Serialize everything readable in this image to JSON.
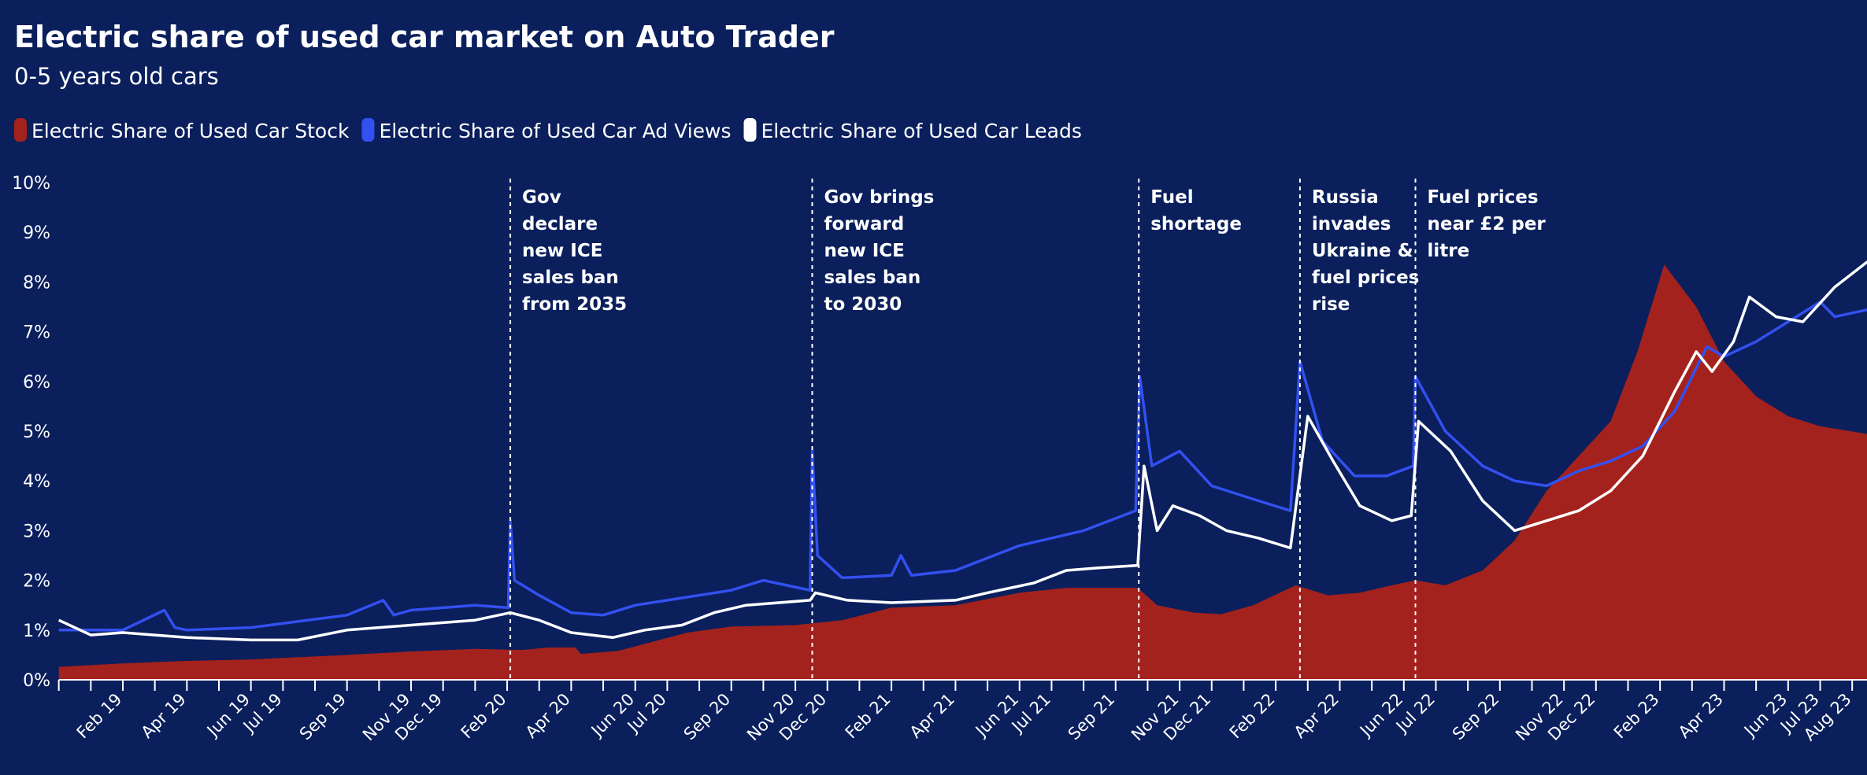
{
  "chart_data": {
    "type": "area+line",
    "title": "Electric share of used car market on Auto Trader",
    "subtitle": "0-5 years old cars",
    "xlabel": "",
    "ylabel": "",
    "ylim": [
      0,
      10
    ],
    "yticks": [
      "0%",
      "1%",
      "2%",
      "3%",
      "4%",
      "5%",
      "6%",
      "7%",
      "8%",
      "9%",
      "10%"
    ],
    "xlim": [
      "2018-12-01",
      "2023-08-28"
    ],
    "xticks": [
      {
        "label": "Feb 19",
        "date": "2019-02-01"
      },
      {
        "label": "Apr 19",
        "date": "2019-04-01"
      },
      {
        "label": "Jun 19",
        "date": "2019-06-01"
      },
      {
        "label": "Jul 19",
        "date": "2019-07-01"
      },
      {
        "label": "Sep 19",
        "date": "2019-09-01"
      },
      {
        "label": "Nov 19",
        "date": "2019-11-01"
      },
      {
        "label": "Dec 19",
        "date": "2019-12-01"
      },
      {
        "label": "Feb 20",
        "date": "2020-02-01"
      },
      {
        "label": "Apr 20",
        "date": "2020-04-01"
      },
      {
        "label": "Jun 20",
        "date": "2020-06-01"
      },
      {
        "label": "Jul 20",
        "date": "2020-07-01"
      },
      {
        "label": "Sep 20",
        "date": "2020-09-01"
      },
      {
        "label": "Nov 20",
        "date": "2020-11-01"
      },
      {
        "label": "Dec 20",
        "date": "2020-12-01"
      },
      {
        "label": "Feb 21",
        "date": "2021-02-01"
      },
      {
        "label": "Apr 21",
        "date": "2021-04-01"
      },
      {
        "label": "Jun 21",
        "date": "2021-06-01"
      },
      {
        "label": "Jul 21",
        "date": "2021-07-01"
      },
      {
        "label": "Sep 21",
        "date": "2021-09-01"
      },
      {
        "label": "Nov 21",
        "date": "2021-11-01"
      },
      {
        "label": "Dec 21",
        "date": "2021-12-01"
      },
      {
        "label": "Feb 22",
        "date": "2022-02-01"
      },
      {
        "label": "Apr 22",
        "date": "2022-04-01"
      },
      {
        "label": "Jun 22",
        "date": "2022-06-01"
      },
      {
        "label": "Jul 22",
        "date": "2022-07-01"
      },
      {
        "label": "Sep 22",
        "date": "2022-09-01"
      },
      {
        "label": "Nov 22",
        "date": "2022-11-01"
      },
      {
        "label": "Dec 22",
        "date": "2022-12-01"
      },
      {
        "label": "Feb 23",
        "date": "2023-02-01"
      },
      {
        "label": "Apr 23",
        "date": "2023-04-01"
      },
      {
        "label": "Jun 23",
        "date": "2023-06-01"
      },
      {
        "label": "Jul 23",
        "date": "2023-07-01"
      },
      {
        "label": "Aug 23",
        "date": "2023-08-01"
      }
    ],
    "grid": false,
    "legend_placement": "top-left",
    "series": [
      {
        "name": "Electric Share of Used Car Stock",
        "type": "area",
        "color": "#a4221d",
        "points": [
          [
            "2018-12-01",
            0.26
          ],
          [
            "2019-02-01",
            0.33
          ],
          [
            "2019-04-01",
            0.38
          ],
          [
            "2019-06-01",
            0.41
          ],
          [
            "2019-09-01",
            0.5
          ],
          [
            "2019-11-01",
            0.57
          ],
          [
            "2020-01-01",
            0.62
          ],
          [
            "2020-02-15",
            0.6
          ],
          [
            "2020-03-10",
            0.65
          ],
          [
            "2020-04-05",
            0.65
          ],
          [
            "2020-04-10",
            0.52
          ],
          [
            "2020-05-15",
            0.58
          ],
          [
            "2020-06-15",
            0.75
          ],
          [
            "2020-07-20",
            0.95
          ],
          [
            "2020-09-01",
            1.07
          ],
          [
            "2020-11-01",
            1.1
          ],
          [
            "2020-12-15",
            1.2
          ],
          [
            "2021-02-01",
            1.45
          ],
          [
            "2021-04-01",
            1.5
          ],
          [
            "2021-06-01",
            1.75
          ],
          [
            "2021-07-15",
            1.85
          ],
          [
            "2021-09-22",
            1.85
          ],
          [
            "2021-10-10",
            1.5
          ],
          [
            "2021-11-15",
            1.35
          ],
          [
            "2021-12-10",
            1.32
          ],
          [
            "2022-01-10",
            1.5
          ],
          [
            "2022-02-20",
            1.9
          ],
          [
            "2022-03-20",
            1.7
          ],
          [
            "2022-04-20",
            1.75
          ],
          [
            "2022-05-20",
            1.9
          ],
          [
            "2022-06-12",
            2.0
          ],
          [
            "2022-07-10",
            1.9
          ],
          [
            "2022-08-15",
            2.2
          ],
          [
            "2022-09-15",
            2.8
          ],
          [
            "2022-10-15",
            3.8
          ],
          [
            "2022-11-15",
            4.5
          ],
          [
            "2022-12-15",
            5.2
          ],
          [
            "2023-01-10",
            6.6
          ],
          [
            "2023-02-05",
            8.35
          ],
          [
            "2023-03-05",
            7.5
          ],
          [
            "2023-04-01",
            6.4
          ],
          [
            "2023-05-01",
            5.7
          ],
          [
            "2023-06-01",
            5.3
          ],
          [
            "2023-07-01",
            5.1
          ],
          [
            "2023-08-28",
            4.9
          ]
        ]
      },
      {
        "name": "Electric Share of Used Car Ad Views",
        "type": "line",
        "color": "#3350f0",
        "points": [
          [
            "2018-12-01",
            1.0
          ],
          [
            "2019-02-01",
            1.0
          ],
          [
            "2019-03-10",
            1.4
          ],
          [
            "2019-03-20",
            1.05
          ],
          [
            "2019-04-01",
            1.0
          ],
          [
            "2019-06-01",
            1.05
          ],
          [
            "2019-09-01",
            1.3
          ],
          [
            "2019-10-05",
            1.6
          ],
          [
            "2019-10-15",
            1.3
          ],
          [
            "2019-11-01",
            1.4
          ],
          [
            "2020-01-01",
            1.5
          ],
          [
            "2020-02-02",
            1.45
          ],
          [
            "2020-02-04",
            3.2
          ],
          [
            "2020-02-08",
            2.0
          ],
          [
            "2020-03-01",
            1.7
          ],
          [
            "2020-04-01",
            1.35
          ],
          [
            "2020-05-01",
            1.3
          ],
          [
            "2020-06-01",
            1.5
          ],
          [
            "2020-07-01",
            1.6
          ],
          [
            "2020-09-01",
            1.8
          ],
          [
            "2020-10-01",
            2.0
          ],
          [
            "2020-11-15",
            1.8
          ],
          [
            "2020-11-17",
            4.6
          ],
          [
            "2020-11-22",
            2.5
          ],
          [
            "2020-12-15",
            2.05
          ],
          [
            "2021-02-01",
            2.1
          ],
          [
            "2021-02-10",
            2.5
          ],
          [
            "2021-02-20",
            2.1
          ],
          [
            "2021-04-01",
            2.2
          ],
          [
            "2021-06-01",
            2.7
          ],
          [
            "2021-08-01",
            3.0
          ],
          [
            "2021-09-20",
            3.4
          ],
          [
            "2021-09-24",
            6.1
          ],
          [
            "2021-10-05",
            4.3
          ],
          [
            "2021-11-01",
            4.6
          ],
          [
            "2021-12-01",
            3.9
          ],
          [
            "2022-01-15",
            3.6
          ],
          [
            "2022-02-15",
            3.4
          ],
          [
            "2022-02-24",
            6.4
          ],
          [
            "2022-03-15",
            4.8
          ],
          [
            "2022-04-15",
            4.1
          ],
          [
            "2022-05-15",
            4.1
          ],
          [
            "2022-06-10",
            4.3
          ],
          [
            "2022-06-12",
            6.1
          ],
          [
            "2022-07-10",
            5.0
          ],
          [
            "2022-08-15",
            4.3
          ],
          [
            "2022-09-15",
            4.0
          ],
          [
            "2022-10-15",
            3.9
          ],
          [
            "2022-11-15",
            4.2
          ],
          [
            "2022-12-15",
            4.4
          ],
          [
            "2023-01-15",
            4.7
          ],
          [
            "2023-02-15",
            5.4
          ],
          [
            "2023-03-15",
            6.7
          ],
          [
            "2023-04-01",
            6.5
          ],
          [
            "2023-05-01",
            6.8
          ],
          [
            "2023-06-01",
            7.2
          ],
          [
            "2023-07-01",
            7.6
          ],
          [
            "2023-07-15",
            7.3
          ],
          [
            "2023-08-28",
            7.5
          ]
        ]
      },
      {
        "name": "Electric Share of Used Car Leads",
        "type": "line",
        "color": "#ffffff",
        "points": [
          [
            "2018-12-01",
            1.2
          ],
          [
            "2019-01-01",
            0.9
          ],
          [
            "2019-02-01",
            0.95
          ],
          [
            "2019-04-01",
            0.85
          ],
          [
            "2019-06-01",
            0.8
          ],
          [
            "2019-07-15",
            0.8
          ],
          [
            "2019-09-01",
            1.0
          ],
          [
            "2019-11-01",
            1.1
          ],
          [
            "2020-01-01",
            1.2
          ],
          [
            "2020-02-04",
            1.35
          ],
          [
            "2020-03-01",
            1.2
          ],
          [
            "2020-04-01",
            0.95
          ],
          [
            "2020-05-10",
            0.85
          ],
          [
            "2020-06-10",
            1.0
          ],
          [
            "2020-07-15",
            1.1
          ],
          [
            "2020-08-15",
            1.35
          ],
          [
            "2020-09-15",
            1.5
          ],
          [
            "2020-11-15",
            1.6
          ],
          [
            "2020-11-20",
            1.75
          ],
          [
            "2020-12-20",
            1.6
          ],
          [
            "2021-02-01",
            1.55
          ],
          [
            "2021-04-01",
            1.6
          ],
          [
            "2021-05-01",
            1.75
          ],
          [
            "2021-06-15",
            1.95
          ],
          [
            "2021-07-15",
            2.2
          ],
          [
            "2021-08-15",
            2.25
          ],
          [
            "2021-09-22",
            2.3
          ],
          [
            "2021-09-28",
            4.3
          ],
          [
            "2021-10-10",
            3.0
          ],
          [
            "2021-10-25",
            3.5
          ],
          [
            "2021-11-20",
            3.3
          ],
          [
            "2021-12-15",
            3.0
          ],
          [
            "2022-01-15",
            2.85
          ],
          [
            "2022-02-15",
            2.65
          ],
          [
            "2022-03-01",
            5.3
          ],
          [
            "2022-03-25",
            4.4
          ],
          [
            "2022-04-20",
            3.5
          ],
          [
            "2022-05-20",
            3.2
          ],
          [
            "2022-06-08",
            3.3
          ],
          [
            "2022-06-15",
            5.2
          ],
          [
            "2022-07-15",
            4.6
          ],
          [
            "2022-08-15",
            3.6
          ],
          [
            "2022-09-15",
            3.0
          ],
          [
            "2022-10-15",
            3.2
          ],
          [
            "2022-11-15",
            3.4
          ],
          [
            "2022-12-15",
            3.8
          ],
          [
            "2023-01-15",
            4.5
          ],
          [
            "2023-02-15",
            5.8
          ],
          [
            "2023-03-05",
            6.6
          ],
          [
            "2023-03-20",
            6.2
          ],
          [
            "2023-04-10",
            6.8
          ],
          [
            "2023-04-25",
            7.7
          ],
          [
            "2023-05-20",
            7.3
          ],
          [
            "2023-06-15",
            7.2
          ],
          [
            "2023-07-15",
            7.9
          ],
          [
            "2023-08-15",
            8.4
          ],
          [
            "2023-08-28",
            8.3
          ]
        ]
      }
    ],
    "annotations": [
      {
        "date": "2020-02-04",
        "lines": [
          "Gov",
          "declare",
          "new ICE",
          "sales ban",
          "from 2035"
        ]
      },
      {
        "date": "2020-11-17",
        "lines": [
          "Gov brings",
          "forward",
          "new ICE",
          "sales ban",
          "to 2030"
        ]
      },
      {
        "date": "2021-09-23",
        "lines": [
          "Fuel",
          "shortage"
        ]
      },
      {
        "date": "2022-02-24",
        "lines": [
          "Russia",
          "invades",
          "Ukraine &",
          "fuel prices",
          "rise"
        ]
      },
      {
        "date": "2022-06-12",
        "lines": [
          "Fuel prices",
          "near £2 per",
          "litre"
        ]
      }
    ]
  }
}
